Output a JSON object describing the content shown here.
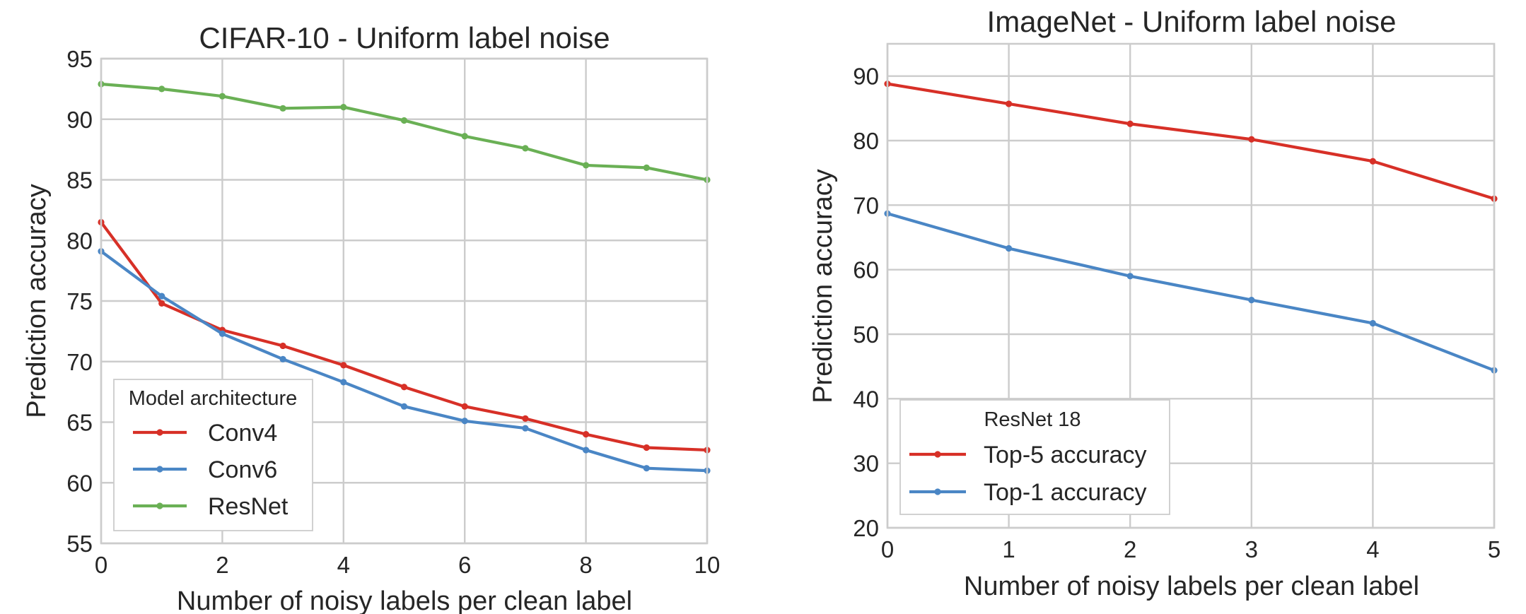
{
  "colors": {
    "red": "#d73027",
    "blue": "#4a86c5",
    "green": "#6ab055"
  },
  "chart_data": [
    {
      "type": "line",
      "title": "CIFAR-10 - Uniform label noise",
      "xlabel": "Number of noisy labels per clean label",
      "ylabel": "Prediction accuracy",
      "xlim": [
        0,
        10
      ],
      "ylim": [
        55,
        95
      ],
      "xticks": [
        "0",
        "2",
        "4",
        "6",
        "8",
        "10"
      ],
      "yticks": [
        "55",
        "60",
        "65",
        "70",
        "75",
        "80",
        "85",
        "90",
        "95"
      ],
      "grid": true,
      "legend": {
        "title": "Model architecture",
        "placement": "lower-left"
      },
      "x": [
        0,
        1,
        2,
        3,
        4,
        5,
        6,
        7,
        8,
        9,
        10
      ],
      "series": [
        {
          "name": "Conv4",
          "color": "red",
          "values": [
            81.5,
            74.8,
            72.6,
            71.3,
            69.7,
            67.9,
            66.3,
            65.3,
            64.0,
            62.9,
            62.7
          ]
        },
        {
          "name": "Conv6",
          "color": "blue",
          "values": [
            79.1,
            75.4,
            72.3,
            70.2,
            68.3,
            66.3,
            65.1,
            64.5,
            62.7,
            61.2,
            61.0
          ]
        },
        {
          "name": "ResNet",
          "color": "green",
          "values": [
            92.9,
            92.5,
            91.9,
            90.9,
            91.0,
            89.9,
            88.6,
            87.6,
            86.2,
            86.0,
            85.0
          ]
        }
      ]
    },
    {
      "type": "line",
      "title": "ImageNet - Uniform label noise",
      "xlabel": "Number of noisy labels per clean label",
      "ylabel": "Prediction accuracy",
      "xlim": [
        0,
        5
      ],
      "ylim": [
        20,
        95
      ],
      "xticks": [
        "0",
        "1",
        "2",
        "3",
        "4",
        "5"
      ],
      "yticks": [
        "20",
        "30",
        "40",
        "50",
        "60",
        "70",
        "80",
        "90"
      ],
      "grid": true,
      "legend": {
        "title": "ResNet 18",
        "placement": "lower-left"
      },
      "x": [
        0,
        1,
        2,
        3,
        4,
        5
      ],
      "series": [
        {
          "name": "Top-5 accuracy",
          "color": "red",
          "values": [
            88.8,
            85.7,
            82.6,
            80.2,
            76.8,
            71.0
          ]
        },
        {
          "name": "Top-1 accuracy",
          "color": "blue",
          "values": [
            68.7,
            63.3,
            59.0,
            55.3,
            51.7,
            44.4
          ]
        }
      ]
    }
  ]
}
